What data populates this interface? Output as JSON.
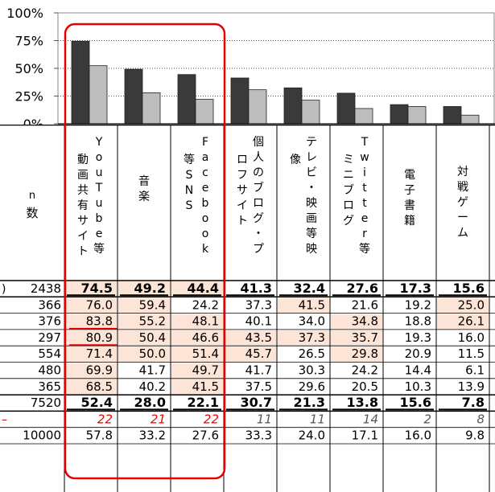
{
  "chart_data": {
    "type": "bar",
    "y_ticks": [
      "100%",
      "75%",
      "50%",
      "25%",
      "0%"
    ],
    "ylim": [
      0,
      100
    ],
    "grid": "dotted horizontal at 25% steps",
    "legend": "none",
    "categories": [
      "動画共有サイト YouTube等",
      "音楽",
      "Facebook等SNS",
      "個人のブログ・プロフサイト",
      "テレビ・映画等映像",
      "Twitterミニブログ等",
      "電子書籍",
      "対戦ゲーム"
    ],
    "series": [
      {
        "color": "#3a3a3a",
        "values": [
          74.5,
          49.2,
          44.4,
          41.3,
          32.4,
          27.6,
          17.3,
          15.6
        ]
      },
      {
        "color": "#bdbdbd",
        "values": [
          52.4,
          28.0,
          22.1,
          30.7,
          21.3,
          13.8,
          15.6,
          7.8
        ]
      }
    ]
  },
  "table": {
    "n_header_top": "n",
    "n_header_bottom": "数",
    "columns": [
      {
        "vertical": [
          "Y",
          "o",
          "u",
          "T",
          "u",
          "b",
          "e",
          "等"
        ],
        "side": [
          "動",
          "画",
          "共",
          "有",
          "サ",
          "イ",
          "ト"
        ]
      },
      {
        "vertical": [
          "音",
          "楽"
        ]
      },
      {
        "vertical": [
          "F",
          "a",
          "c",
          "e",
          "b",
          "o",
          "o",
          "k"
        ],
        "side": [
          "等",
          "S",
          "N",
          "S"
        ]
      },
      {
        "vertical": [
          "個",
          "人",
          "の",
          "ブ",
          "ロ",
          "グ",
          "・",
          "プ"
        ],
        "side": [
          "ロ",
          "フ",
          "サ",
          "イ",
          "ト"
        ]
      },
      {
        "vertical": [
          "テ",
          "レ",
          "ビ",
          "・",
          "映",
          "画",
          "等",
          "映"
        ],
        "side": [
          "像"
        ]
      },
      {
        "vertical": [
          "T",
          "w",
          "i",
          "t",
          "t",
          "e",
          "r",
          "等"
        ],
        "side": [
          "ミ",
          "ニ",
          "ブ",
          "ロ",
          "グ"
        ]
      },
      {
        "vertical": [
          "電",
          "子",
          "書",
          "籍"
        ]
      },
      {
        "vertical": [
          "対",
          "戦",
          "ゲ",
          "ー",
          "ム"
        ]
      }
    ],
    "rows": [
      {
        "stub": ")",
        "n": "2438",
        "values": [
          "74.5",
          "49.2",
          "44.4",
          "41.3",
          "32.4",
          "27.6",
          "17.3",
          "15.6"
        ],
        "bold": true,
        "shaded": [
          0,
          1,
          2
        ],
        "underline": [
          0,
          1,
          2,
          3,
          4,
          5,
          6,
          7
        ]
      },
      {
        "stub": "",
        "n": "366",
        "values": [
          "76.0",
          "59.4",
          "24.2",
          "37.3",
          "41.5",
          "21.6",
          "19.2",
          "25.0"
        ],
        "shaded": [
          0,
          1,
          4,
          7
        ]
      },
      {
        "stub": "",
        "n": "376",
        "values": [
          "83.8",
          "55.2",
          "48.1",
          "40.1",
          "34.0",
          "34.8",
          "18.8",
          "26.1"
        ],
        "shaded": [
          0,
          1,
          2,
          5,
          7
        ]
      },
      {
        "stub": "",
        "n": "297",
        "values": [
          "80.9",
          "50.4",
          "46.6",
          "43.5",
          "37.3",
          "35.7",
          "19.3",
          "16.0"
        ],
        "shaded": [
          0,
          1,
          2,
          3,
          4,
          5
        ]
      },
      {
        "stub": "",
        "n": "554",
        "values": [
          "71.4",
          "50.0",
          "51.4",
          "45.7",
          "26.5",
          "29.8",
          "20.9",
          "11.5"
        ],
        "shaded": [
          0,
          1,
          2,
          3,
          5
        ]
      },
      {
        "stub": "",
        "n": "480",
        "values": [
          "69.9",
          "41.7",
          "49.7",
          "41.7",
          "30.3",
          "24.2",
          "14.4",
          "6.1"
        ],
        "shaded": [
          0,
          2
        ]
      },
      {
        "stub": "",
        "n": "365",
        "values": [
          "68.5",
          "40.2",
          "41.5",
          "37.5",
          "29.6",
          "20.5",
          "10.3",
          "13.9"
        ],
        "shaded": [
          0,
          2
        ]
      },
      {
        "stub": "",
        "n": "7520",
        "values": [
          "52.4",
          "28.0",
          "22.1",
          "30.7",
          "21.3",
          "13.8",
          "15.6",
          "7.8"
        ],
        "bold": true,
        "underline": [
          0,
          1,
          2,
          3,
          4,
          5,
          6,
          7
        ]
      },
      {
        "stub": "–",
        "n": "",
        "values": [
          "22",
          "21",
          "22",
          "11",
          "11",
          "14",
          "2",
          "8"
        ],
        "italic": true,
        "red": [
          0,
          1,
          2
        ]
      },
      {
        "stub": "",
        "n": "10000",
        "values": [
          "57.8",
          "33.2",
          "27.6",
          "33.3",
          "24.0",
          "17.1",
          "16.0",
          "9.8"
        ]
      }
    ]
  }
}
